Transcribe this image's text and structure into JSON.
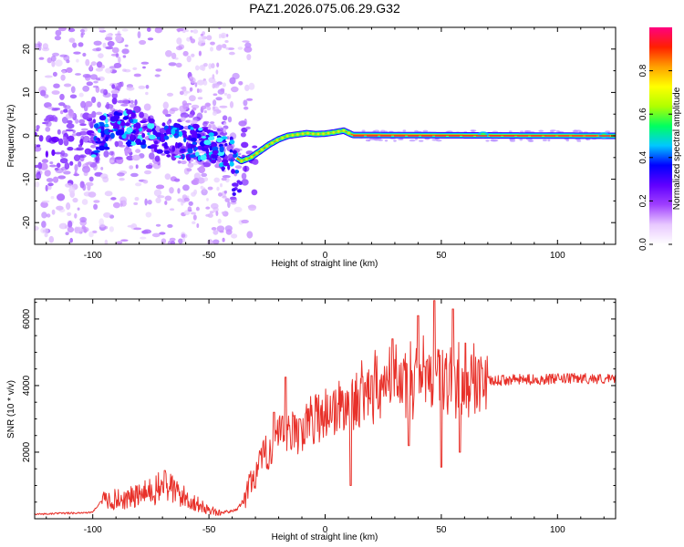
{
  "title": "PAZ1.2026.075.06.29.G32",
  "chart_data": [
    {
      "type": "heatmap",
      "name": "spectrogram",
      "xlabel": "Height of straight line (km)",
      "ylabel": "Frequency (Hz)",
      "xlim": [
        -125,
        125
      ],
      "ylim": [
        -25,
        25
      ],
      "xticks": [
        -100,
        -50,
        0,
        50,
        100
      ],
      "yticks": [
        -20,
        -10,
        0,
        10,
        20
      ],
      "colorbar": {
        "label": "Normalized spectral amplitude",
        "range": [
          0,
          1
        ],
        "ticks": [
          "0.0",
          "0.2",
          "0.4",
          "0.6",
          "0.8"
        ],
        "tick_values": [
          0.0,
          0.2,
          0.4,
          0.6,
          0.8
        ],
        "colors": [
          "#ffffff",
          "#e8c8ff",
          "#a040ff",
          "#6000ff",
          "#0000ff",
          "#00c8ff",
          "#00ff60",
          "#b0ff00",
          "#ffff00",
          "#ffa000",
          "#ff2000",
          "#ff0080"
        ]
      },
      "ridge": {
        "x": [
          -100,
          -90,
          -80,
          -70,
          -60,
          -50,
          -45,
          -40,
          -36,
          -32,
          -28,
          -24,
          -20,
          -16,
          -12,
          -8,
          -4,
          0,
          4,
          8,
          12,
          125
        ],
        "y": [
          -1.5,
          2.5,
          1.0,
          -0.5,
          -1.0,
          -2.5,
          -3.5,
          -4.5,
          -5.8,
          -5.0,
          -3.5,
          -2.0,
          -0.8,
          0.0,
          0.3,
          0.6,
          0.4,
          0.5,
          0.8,
          1.2,
          0.2,
          0.0
        ]
      }
    },
    {
      "type": "line",
      "name": "snr",
      "xlabel": "Height of straight line (km)",
      "ylabel": "SNR (10 * v/v)",
      "xlim": [
        -125,
        125
      ],
      "ylim": [
        0,
        6600
      ],
      "xticks": [
        -100,
        -50,
        0,
        50,
        100
      ],
      "yticks": [
        2000,
        4000,
        6000
      ],
      "color": "#e8312a",
      "envelope": {
        "x": [
          -125,
          -100,
          -96,
          -85,
          -75,
          -68,
          -62,
          -52,
          -45,
          -38,
          -35,
          -32,
          -28,
          -24,
          -20,
          -15,
          -10,
          -5,
          0,
          5,
          10,
          15,
          20,
          25,
          30,
          35,
          40,
          45,
          50,
          55,
          60,
          65,
          70,
          75,
          80,
          90,
          100,
          110,
          120,
          125
        ],
        "y": [
          120,
          180,
          550,
          600,
          800,
          1000,
          700,
          320,
          160,
          250,
          500,
          1100,
          1600,
          2100,
          2400,
          2500,
          2700,
          3000,
          3200,
          3300,
          3450,
          3650,
          3850,
          4000,
          4100,
          4200,
          4250,
          4300,
          4200,
          4150,
          4100,
          4150,
          4120,
          4150,
          4180,
          4180,
          4200,
          4220,
          4200,
          4180
        ]
      },
      "spikes": [
        {
          "x": -69,
          "y": 1450
        },
        {
          "x": -22,
          "y": 3200
        },
        {
          "x": -17,
          "y": 4250
        },
        {
          "x": -11,
          "y": 3000
        },
        {
          "x": 11,
          "y": 1000
        },
        {
          "x": 20,
          "y": 4300
        },
        {
          "x": 29,
          "y": 5400
        },
        {
          "x": 36,
          "y": 2200
        },
        {
          "x": 40,
          "y": 6100
        },
        {
          "x": 47,
          "y": 6550
        },
        {
          "x": 50,
          "y": 1550
        },
        {
          "x": 55,
          "y": 6300
        },
        {
          "x": 58,
          "y": 2000
        }
      ]
    }
  ]
}
